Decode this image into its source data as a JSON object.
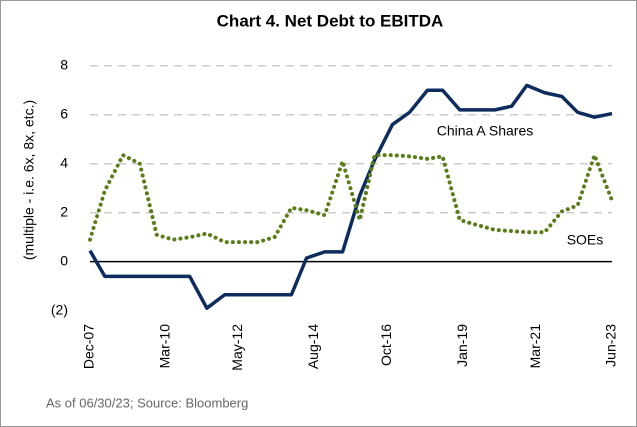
{
  "chart_data": {
    "type": "line",
    "title": "Chart 4. Net Debt to EBITDA",
    "ylabel": "(multiple - i.e. 6x, 8x, etc.)",
    "source": "As of 06/30/23; Source: Bloomberg",
    "xlim": [
      2007.92,
      2023.42
    ],
    "xticks": [
      {
        "value": 2007.92,
        "label": "Dec-07"
      },
      {
        "value": 2010.17,
        "label": "Mar-10"
      },
      {
        "value": 2012.33,
        "label": "May-12"
      },
      {
        "value": 2014.58,
        "label": "Aug-14"
      },
      {
        "value": 2016.75,
        "label": "Oct-16"
      },
      {
        "value": 2019.0,
        "label": "Jan-19"
      },
      {
        "value": 2021.17,
        "label": "Mar-21"
      },
      {
        "value": 2023.42,
        "label": "Jun-23"
      }
    ],
    "ylim": [
      -2.3,
      8.4
    ],
    "yticks": [
      {
        "value": -2,
        "label": "(2)"
      },
      0,
      2,
      4,
      6,
      8
    ],
    "grid": true,
    "zero_line": true,
    "series": [
      {
        "name": "China A Shares",
        "color": "#0e2d5e",
        "style": "solid",
        "x": [
          2007.92,
          2008.36,
          2010.88,
          2011.39,
          2011.92,
          2013.9,
          2014.35,
          2014.89,
          2015.42,
          2015.93,
          2016.37,
          2016.9,
          2017.41,
          2017.94,
          2018.39,
          2018.9,
          2019.94,
          2020.44,
          2020.89,
          2021.42,
          2021.93,
          2022.4,
          2022.9,
          2023.42
        ],
        "values": [
          0.45,
          -0.6,
          -0.6,
          -1.9,
          -1.35,
          -1.35,
          0.15,
          0.4,
          0.4,
          2.7,
          4.15,
          5.6,
          6.1,
          7.0,
          7.0,
          6.2,
          6.2,
          6.35,
          7.2,
          6.9,
          6.75,
          6.1,
          5.9,
          6.05
        ]
      },
      {
        "name": "SOEs",
        "color": "#5a7d1a",
        "style": "dotted",
        "x": [
          2007.92,
          2008.36,
          2008.9,
          2009.4,
          2009.9,
          2010.38,
          2010.88,
          2011.39,
          2011.92,
          2012.9,
          2013.4,
          2013.9,
          2014.35,
          2014.89,
          2015.42,
          2015.93,
          2016.37,
          2016.9,
          2017.41,
          2017.94,
          2018.39,
          2018.9,
          2019.41,
          2019.94,
          2020.44,
          2020.89,
          2021.42,
          2021.93,
          2022.4,
          2022.9,
          2023.42
        ],
        "values": [
          0.9,
          2.9,
          4.35,
          4.0,
          1.1,
          0.9,
          1.0,
          1.15,
          0.8,
          0.8,
          1.0,
          2.2,
          2.1,
          1.9,
          4.1,
          1.7,
          4.35,
          4.35,
          4.3,
          4.2,
          4.3,
          1.7,
          1.5,
          1.3,
          1.25,
          1.2,
          1.2,
          2.05,
          2.3,
          4.35,
          2.5
        ]
      }
    ]
  }
}
